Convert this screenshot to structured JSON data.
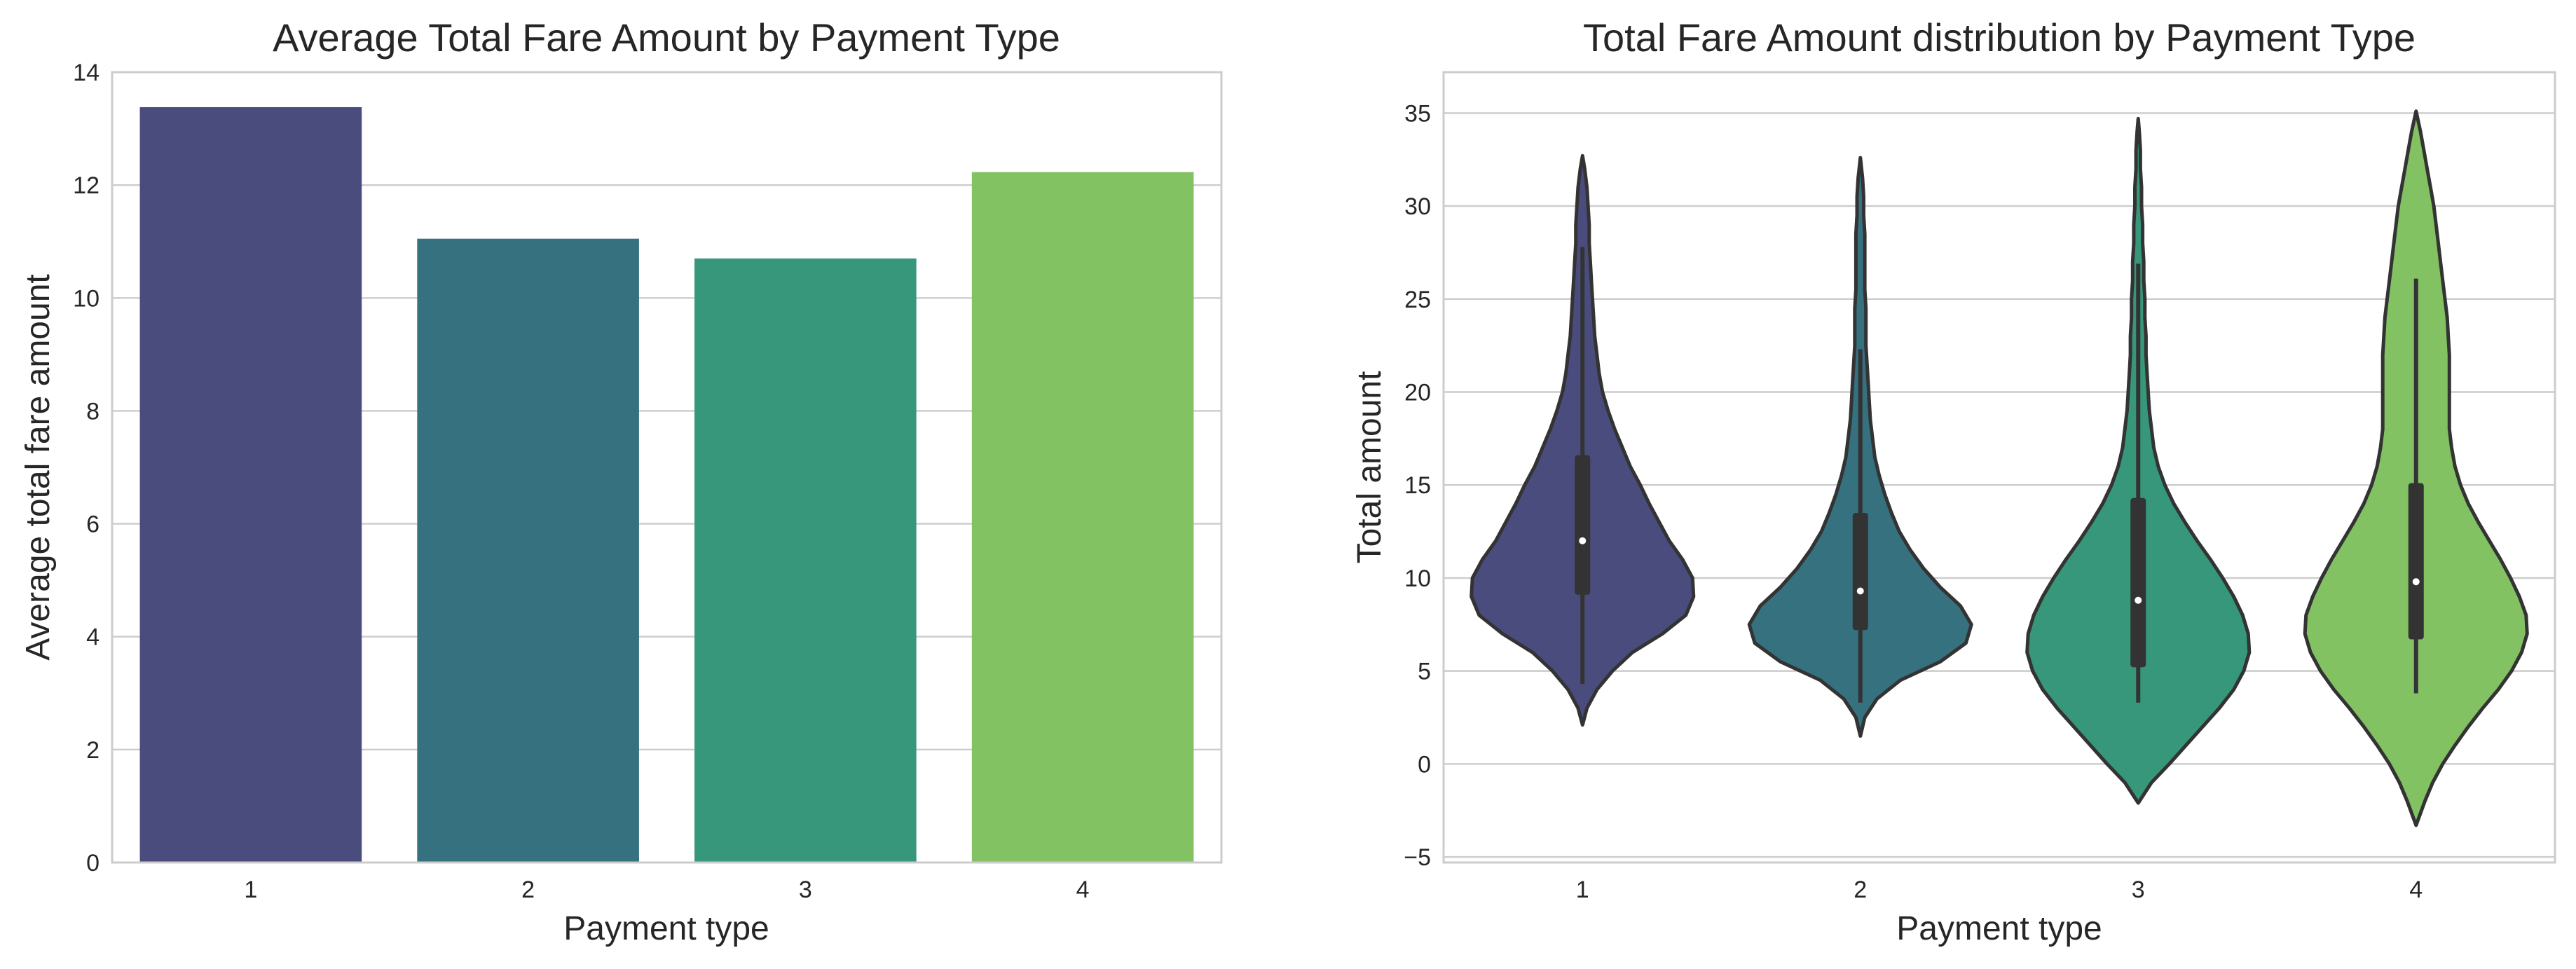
{
  "chart_data": [
    {
      "type": "bar",
      "title": "Average Total Fare Amount by Payment Type",
      "xlabel": "Payment type",
      "ylabel": "Average total fare amount",
      "categories": [
        "1",
        "2",
        "3",
        "4"
      ],
      "values": [
        13.38,
        11.05,
        10.7,
        12.23
      ],
      "colors": [
        "#4a4c7e",
        "#367180",
        "#36977a",
        "#82c263"
      ],
      "ylim": [
        0,
        14
      ],
      "yticks": [
        "0",
        "2",
        "4",
        "6",
        "8",
        "10",
        "12",
        "14"
      ],
      "grid": "horizontal"
    },
    {
      "type": "violin",
      "title": "Total Fare Amount distribution by Payment Type",
      "xlabel": "Payment type",
      "ylabel": "Total amount",
      "categories": [
        "1",
        "2",
        "3",
        "4"
      ],
      "colors": [
        "#4a4c7e",
        "#367180",
        "#36977a",
        "#82c263"
      ],
      "ylim": [
        -5.3,
        37.2
      ],
      "yticks": [
        "−5",
        "0",
        "5",
        "10",
        "15",
        "20",
        "25",
        "30",
        "35"
      ],
      "grid": "horizontal",
      "summary": [
        {
          "category": "1",
          "median": 12.0,
          "q1": 9.1,
          "q3": 16.6,
          "whisker_low": 4.3,
          "whisker_high": 27.8,
          "min": 2.1,
          "max": 32.7
        },
        {
          "category": "2",
          "median": 9.3,
          "q1": 7.2,
          "q3": 13.5,
          "whisker_low": 3.3,
          "whisker_high": 22.3,
          "min": 1.5,
          "max": 32.6
        },
        {
          "category": "3",
          "median": 8.8,
          "q1": 5.2,
          "q3": 14.3,
          "whisker_low": 3.3,
          "whisker_high": 26.9,
          "min": -2.1,
          "max": 34.7
        },
        {
          "category": "4",
          "median": 9.8,
          "q1": 6.7,
          "q3": 15.1,
          "whisker_low": 3.8,
          "whisker_high": 26.1,
          "min": -3.3,
          "max": 35.1
        }
      ],
      "density_profiles": [
        [
          [
            2.1,
            0.0
          ],
          [
            3.0,
            0.04
          ],
          [
            4.0,
            0.13
          ],
          [
            5.0,
            0.27
          ],
          [
            6.0,
            0.45
          ],
          [
            7.0,
            0.72
          ],
          [
            8.0,
            0.93
          ],
          [
            9.0,
            1.0
          ],
          [
            10.0,
            0.99
          ],
          [
            11.0,
            0.9
          ],
          [
            12.0,
            0.78
          ],
          [
            13.0,
            0.69
          ],
          [
            14.0,
            0.6
          ],
          [
            15.0,
            0.52
          ],
          [
            16.0,
            0.43
          ],
          [
            17.0,
            0.36
          ],
          [
            18.0,
            0.29
          ],
          [
            19.0,
            0.23
          ],
          [
            20.0,
            0.18
          ],
          [
            21.0,
            0.15
          ],
          [
            22.0,
            0.13
          ],
          [
            23.0,
            0.11
          ],
          [
            24.0,
            0.1
          ],
          [
            25.0,
            0.09
          ],
          [
            26.0,
            0.08
          ],
          [
            27.0,
            0.07
          ],
          [
            28.0,
            0.06
          ],
          [
            29.0,
            0.06
          ],
          [
            30.0,
            0.05
          ],
          [
            31.0,
            0.04
          ],
          [
            32.0,
            0.02
          ],
          [
            32.7,
            0.0
          ]
        ],
        [
          [
            1.5,
            0.0
          ],
          [
            2.5,
            0.04
          ],
          [
            3.5,
            0.15
          ],
          [
            4.5,
            0.36
          ],
          [
            5.5,
            0.72
          ],
          [
            6.5,
            0.95
          ],
          [
            7.5,
            1.0
          ],
          [
            8.5,
            0.9
          ],
          [
            9.5,
            0.72
          ],
          [
            10.5,
            0.57
          ],
          [
            11.5,
            0.45
          ],
          [
            12.5,
            0.35
          ],
          [
            13.5,
            0.28
          ],
          [
            14.5,
            0.22
          ],
          [
            15.5,
            0.17
          ],
          [
            16.5,
            0.13
          ],
          [
            17.5,
            0.11
          ],
          [
            18.5,
            0.09
          ],
          [
            19.5,
            0.08
          ],
          [
            20.5,
            0.07
          ],
          [
            21.5,
            0.06
          ],
          [
            22.5,
            0.05
          ],
          [
            23.5,
            0.05
          ],
          [
            24.5,
            0.05
          ],
          [
            25.5,
            0.04
          ],
          [
            26.5,
            0.04
          ],
          [
            27.5,
            0.04
          ],
          [
            28.5,
            0.04
          ],
          [
            29.5,
            0.03
          ],
          [
            30.5,
            0.03
          ],
          [
            31.5,
            0.02
          ],
          [
            32.6,
            0.0
          ]
        ],
        [
          [
            -2.1,
            0.0
          ],
          [
            -1.0,
            0.12
          ],
          [
            0.0,
            0.28
          ],
          [
            1.0,
            0.43
          ],
          [
            2.0,
            0.58
          ],
          [
            3.0,
            0.73
          ],
          [
            4.0,
            0.86
          ],
          [
            5.0,
            0.95
          ],
          [
            6.0,
            1.0
          ],
          [
            7.0,
            0.99
          ],
          [
            8.0,
            0.94
          ],
          [
            9.0,
            0.86
          ],
          [
            10.0,
            0.76
          ],
          [
            11.0,
            0.65
          ],
          [
            12.0,
            0.53
          ],
          [
            13.0,
            0.42
          ],
          [
            14.0,
            0.32
          ],
          [
            15.0,
            0.24
          ],
          [
            16.0,
            0.18
          ],
          [
            17.0,
            0.14
          ],
          [
            18.0,
            0.12
          ],
          [
            19.0,
            0.1
          ],
          [
            20.0,
            0.09
          ],
          [
            21.0,
            0.08
          ],
          [
            22.0,
            0.07
          ],
          [
            23.0,
            0.07
          ],
          [
            24.0,
            0.06
          ],
          [
            25.0,
            0.06
          ],
          [
            26.0,
            0.05
          ],
          [
            27.0,
            0.05
          ],
          [
            28.0,
            0.04
          ],
          [
            29.0,
            0.04
          ],
          [
            30.0,
            0.03
          ],
          [
            31.0,
            0.03
          ],
          [
            32.0,
            0.02
          ],
          [
            33.0,
            0.02
          ],
          [
            34.0,
            0.01
          ],
          [
            34.7,
            0.0
          ]
        ],
        [
          [
            -3.3,
            0.0
          ],
          [
            -2.0,
            0.08
          ],
          [
            -1.0,
            0.15
          ],
          [
            0.0,
            0.24
          ],
          [
            1.0,
            0.35
          ],
          [
            2.0,
            0.47
          ],
          [
            3.0,
            0.6
          ],
          [
            4.0,
            0.74
          ],
          [
            5.0,
            0.86
          ],
          [
            6.0,
            0.95
          ],
          [
            7.0,
            1.0
          ],
          [
            8.0,
            0.99
          ],
          [
            9.0,
            0.93
          ],
          [
            10.0,
            0.85
          ],
          [
            11.0,
            0.76
          ],
          [
            12.0,
            0.66
          ],
          [
            13.0,
            0.56
          ],
          [
            14.0,
            0.47
          ],
          [
            15.0,
            0.4
          ],
          [
            16.0,
            0.35
          ],
          [
            17.0,
            0.32
          ],
          [
            18.0,
            0.3
          ],
          [
            19.0,
            0.3
          ],
          [
            20.0,
            0.3
          ],
          [
            21.0,
            0.3
          ],
          [
            22.0,
            0.3
          ],
          [
            23.0,
            0.29
          ],
          [
            24.0,
            0.28
          ],
          [
            25.0,
            0.26
          ],
          [
            26.0,
            0.24
          ],
          [
            27.0,
            0.22
          ],
          [
            28.0,
            0.2
          ],
          [
            29.0,
            0.18
          ],
          [
            30.0,
            0.16
          ],
          [
            31.0,
            0.13
          ],
          [
            32.0,
            0.1
          ],
          [
            33.0,
            0.07
          ],
          [
            34.0,
            0.04
          ],
          [
            35.1,
            0.0
          ]
        ]
      ]
    }
  ]
}
